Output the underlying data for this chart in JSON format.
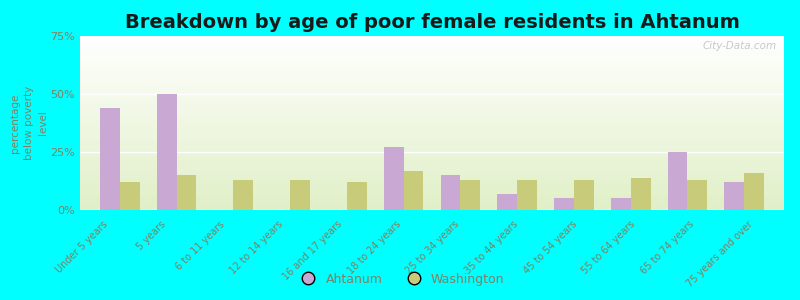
{
  "title": "Breakdown by age of poor female residents in Ahtanum",
  "ylabel": "percentage\nbelow poverty\nlevel",
  "categories": [
    "Under 5 years",
    "5 years",
    "6 to 11 years",
    "12 to 14 years",
    "16 and 17 years",
    "18 to 24 years",
    "25 to 34 years",
    "35 to 44 years",
    "45 to 54 years",
    "55 to 64 years",
    "65 to 74 years",
    "75 years and over"
  ],
  "ahtanum": [
    44,
    50,
    0,
    0,
    0,
    27,
    15,
    7,
    5,
    5,
    25,
    12
  ],
  "washington": [
    12,
    15,
    13,
    13,
    12,
    17,
    13,
    13,
    13,
    14,
    13,
    16
  ],
  "ahtanum_color": "#c9a8d4",
  "washington_color": "#c8cc7a",
  "outer_bg": "#00ffff",
  "ylim": [
    0,
    75
  ],
  "yticks": [
    0,
    25,
    50,
    75
  ],
  "ytick_labels": [
    "0%",
    "25%",
    "50%",
    "75%"
  ],
  "title_fontsize": 14,
  "bar_width": 0.35,
  "legend_labels": [
    "Ahtanum",
    "Washington"
  ],
  "watermark": "City-Data.com",
  "tick_color": "#808060",
  "label_color": "#808060"
}
